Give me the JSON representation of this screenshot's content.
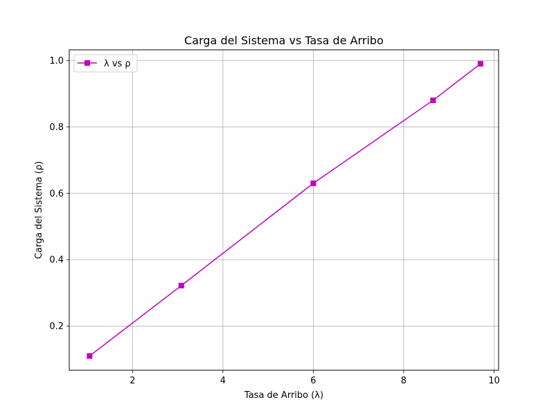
{
  "chart_data": {
    "type": "line",
    "title": "Carga del Sistema vs Tasa de Arribo",
    "xlabel": "Tasa de Arribo (λ)",
    "ylabel": "Carga del Sistema (ρ)",
    "xlim": [
      0.6,
      10.1
    ],
    "ylim": [
      0.067,
      1.032
    ],
    "xticks": [
      2,
      4,
      6,
      8,
      10
    ],
    "xtick_labels": [
      "2",
      "4",
      "6",
      "8",
      "10"
    ],
    "yticks": [
      0.2,
      0.4,
      0.6,
      0.8,
      1.0
    ],
    "ytick_labels": [
      "0.2",
      "0.4",
      "0.6",
      "0.8",
      "1.0"
    ],
    "grid": true,
    "legend_position": "top-left",
    "series": [
      {
        "name": "λ vs ρ",
        "color": "#bf00bf",
        "marker": "square",
        "x": [
          1.05,
          3.08,
          6.0,
          8.65,
          9.7
        ],
        "y": [
          0.11,
          0.322,
          0.63,
          0.88,
          0.99
        ]
      }
    ]
  }
}
